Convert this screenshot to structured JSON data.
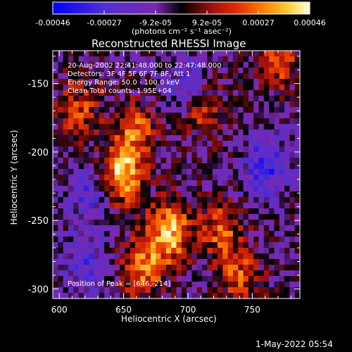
{
  "chart_data": {
    "type": "heatmap",
    "title": "Reconstructed RHESSI Image",
    "xlabel": "Heliocentric X (arcsec)",
    "ylabel": "Heliocentric Y (arcsec)",
    "xlim": [
      595,
      787
    ],
    "ylim": [
      -307,
      -126
    ],
    "x_ticks": [
      600,
      650,
      700,
      750
    ],
    "y_ticks": [
      -150,
      -200,
      -250,
      -300
    ],
    "colorbar": {
      "tick_labels": [
        "-0.00046",
        "-0.00027",
        "-9.2e-05",
        "9.2e-05",
        "0.00027",
        "0.00046"
      ],
      "range": [
        -0.00046,
        0.00046
      ],
      "unit_label": "(photons cm⁻² s⁻¹ asec⁻²)",
      "colors": [
        "#0000ff",
        "#5030d0",
        "#7a28b0",
        "#000000",
        "#a01010",
        "#e03000",
        "#ff8000",
        "#ffd040",
        "#ffffe0"
      ]
    },
    "annotations": [
      "20-Aug-2002 22:41:48.000 to 22:47:48.000",
      "Detectors: 3F 4F 5F 6F 7F 8F, Att 1",
      "Energy Range: 50.0 - 100.0 keV",
      "Clean    Total counts: 1.95E+04"
    ],
    "peak_label": "Position of Peak = [646,-214]",
    "peak_position": [
      646,
      -214
    ],
    "bright_regions": [
      {
        "x": 648,
        "y": -216,
        "intensity": 1.0
      },
      {
        "x": 686,
        "y": -258,
        "intensity": 0.95
      },
      {
        "x": 665,
        "y": -285,
        "intensity": 0.7
      },
      {
        "x": 660,
        "y": -185,
        "intensity": 0.6
      },
      {
        "x": 615,
        "y": -170,
        "intensity": 0.55
      },
      {
        "x": 725,
        "y": -255,
        "intensity": 0.6
      },
      {
        "x": 740,
        "y": -290,
        "intensity": 0.55
      },
      {
        "x": 770,
        "y": -135,
        "intensity": 0.55
      },
      {
        "x": 712,
        "y": -170,
        "intensity": 0.5
      }
    ],
    "dark_regions": [
      {
        "x": 760,
        "y": -210,
        "intensity": -0.6
      },
      {
        "x": 625,
        "y": -230,
        "intensity": -0.45
      },
      {
        "x": 700,
        "y": -150,
        "intensity": -0.4
      },
      {
        "x": 620,
        "y": -280,
        "intensity": -0.4
      }
    ]
  },
  "timestamp": "1-May-2022 05:54"
}
